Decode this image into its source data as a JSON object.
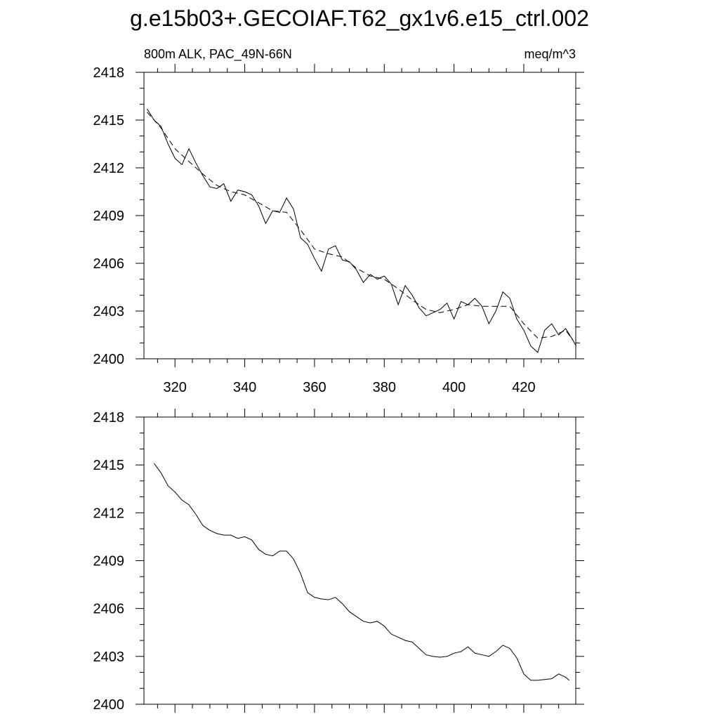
{
  "chart_data": [
    {
      "type": "line",
      "title": "g.e15b03+.GECOIAF.T62_gx1v6.e15_ctrl.002",
      "subtitle_left": "800m ALK, PAC_49N-66N",
      "subtitle_right": "meq/m^3",
      "xlim": [
        311.1,
        434.9
      ],
      "ylim": [
        2400,
        2418
      ],
      "xticks": [
        320,
        340,
        360,
        380,
        400,
        420
      ],
      "yticks": [
        2400,
        2403,
        2406,
        2409,
        2412,
        2415,
        2418
      ],
      "show_xtick_labels": true,
      "series": [
        {
          "color": "#000000",
          "dashed": false,
          "x": [
            312,
            314,
            316,
            318,
            320,
            322,
            324,
            326,
            328,
            330,
            332,
            334,
            336,
            338,
            340,
            342,
            344,
            346,
            348,
            350,
            352,
            354,
            356,
            358,
            360,
            362,
            364,
            366,
            368,
            370,
            372,
            374,
            376,
            378,
            380,
            382,
            384,
            386,
            388,
            390,
            392,
            394,
            396,
            398,
            400,
            402,
            404,
            406,
            408,
            410,
            412,
            414,
            416,
            418,
            420,
            422,
            424,
            426,
            428,
            430,
            432,
            434,
            435
          ],
          "values": [
            2415.7,
            2415.0,
            2414.6,
            2413.5,
            2412.6,
            2412.2,
            2413.2,
            2412.3,
            2411.5,
            2410.8,
            2410.7,
            2411.0,
            2409.9,
            2410.6,
            2410.5,
            2410.3,
            2409.6,
            2408.5,
            2409.3,
            2409.2,
            2410.1,
            2409.4,
            2407.6,
            2407.2,
            2406.3,
            2405.5,
            2406.9,
            2407.1,
            2406.2,
            2406.1,
            2405.6,
            2404.8,
            2405.3,
            2405.0,
            2405.2,
            2404.7,
            2403.4,
            2404.6,
            2404.0,
            2403.2,
            2402.7,
            2402.9,
            2403.1,
            2403.5,
            2402.5,
            2403.6,
            2403.4,
            2403.8,
            2403.3,
            2402.2,
            2403.0,
            2404.2,
            2403.8,
            2402.5,
            2401.8,
            2400.8,
            2400.4,
            2401.8,
            2402.2,
            2401.5,
            2401.9,
            2401.2,
            2400.8
          ]
        },
        {
          "color": "#000000",
          "dashed": true,
          "x": [
            312,
            316,
            320,
            324,
            328,
            332,
            336,
            340,
            344,
            348,
            352,
            356,
            360,
            364,
            368,
            372,
            376,
            380,
            384,
            388,
            392,
            396,
            400,
            404,
            408,
            412,
            416,
            420,
            424,
            428,
            432,
            434
          ],
          "values": [
            2415.5,
            2414.5,
            2413.2,
            2412.4,
            2411.6,
            2410.9,
            2410.5,
            2410.3,
            2409.8,
            2409.3,
            2409.2,
            2408.1,
            2406.9,
            2406.6,
            2406.4,
            2405.7,
            2405.2,
            2405.0,
            2404.4,
            2403.7,
            2403.1,
            2402.9,
            2403.1,
            2403.4,
            2403.3,
            2403.3,
            2403.3,
            2402.2,
            2401.3,
            2401.4,
            2401.8,
            2401.2
          ]
        }
      ]
    },
    {
      "type": "line",
      "xlim": [
        311.1,
        434.9
      ],
      "ylim": [
        2400,
        2418
      ],
      "xticks": [
        320,
        340,
        360,
        380,
        400,
        420
      ],
      "yticks": [
        2400,
        2403,
        2406,
        2409,
        2412,
        2415,
        2418
      ],
      "show_xtick_labels": false,
      "series": [
        {
          "color": "#000000",
          "dashed": false,
          "x": [
            314,
            316,
            318,
            320,
            322,
            324,
            326,
            328,
            330,
            332,
            334,
            336,
            338,
            340,
            342,
            344,
            346,
            348,
            350,
            352,
            354,
            356,
            358,
            360,
            362,
            364,
            366,
            368,
            370,
            372,
            374,
            376,
            378,
            380,
            382,
            384,
            386,
            388,
            390,
            392,
            394,
            396,
            398,
            400,
            402,
            404,
            406,
            408,
            410,
            412,
            414,
            416,
            418,
            420,
            422,
            424,
            426,
            428,
            430,
            432,
            433
          ],
          "values": [
            2415.1,
            2414.5,
            2413.7,
            2413.3,
            2412.8,
            2412.5,
            2411.9,
            2411.2,
            2410.9,
            2410.7,
            2410.6,
            2410.6,
            2410.4,
            2410.5,
            2410.3,
            2409.7,
            2409.4,
            2409.3,
            2409.6,
            2409.6,
            2409.1,
            2408.2,
            2407.0,
            2406.7,
            2406.6,
            2406.55,
            2406.7,
            2406.3,
            2405.8,
            2405.5,
            2405.2,
            2405.1,
            2405.2,
            2404.9,
            2404.4,
            2404.2,
            2404.0,
            2403.9,
            2403.5,
            2403.1,
            2403.0,
            2402.95,
            2403.0,
            2403.2,
            2403.3,
            2403.6,
            2403.2,
            2403.1,
            2403.0,
            2403.3,
            2403.7,
            2403.5,
            2402.9,
            2401.9,
            2401.5,
            2401.5,
            2401.55,
            2401.6,
            2401.9,
            2401.7,
            2401.5
          ]
        }
      ]
    }
  ]
}
